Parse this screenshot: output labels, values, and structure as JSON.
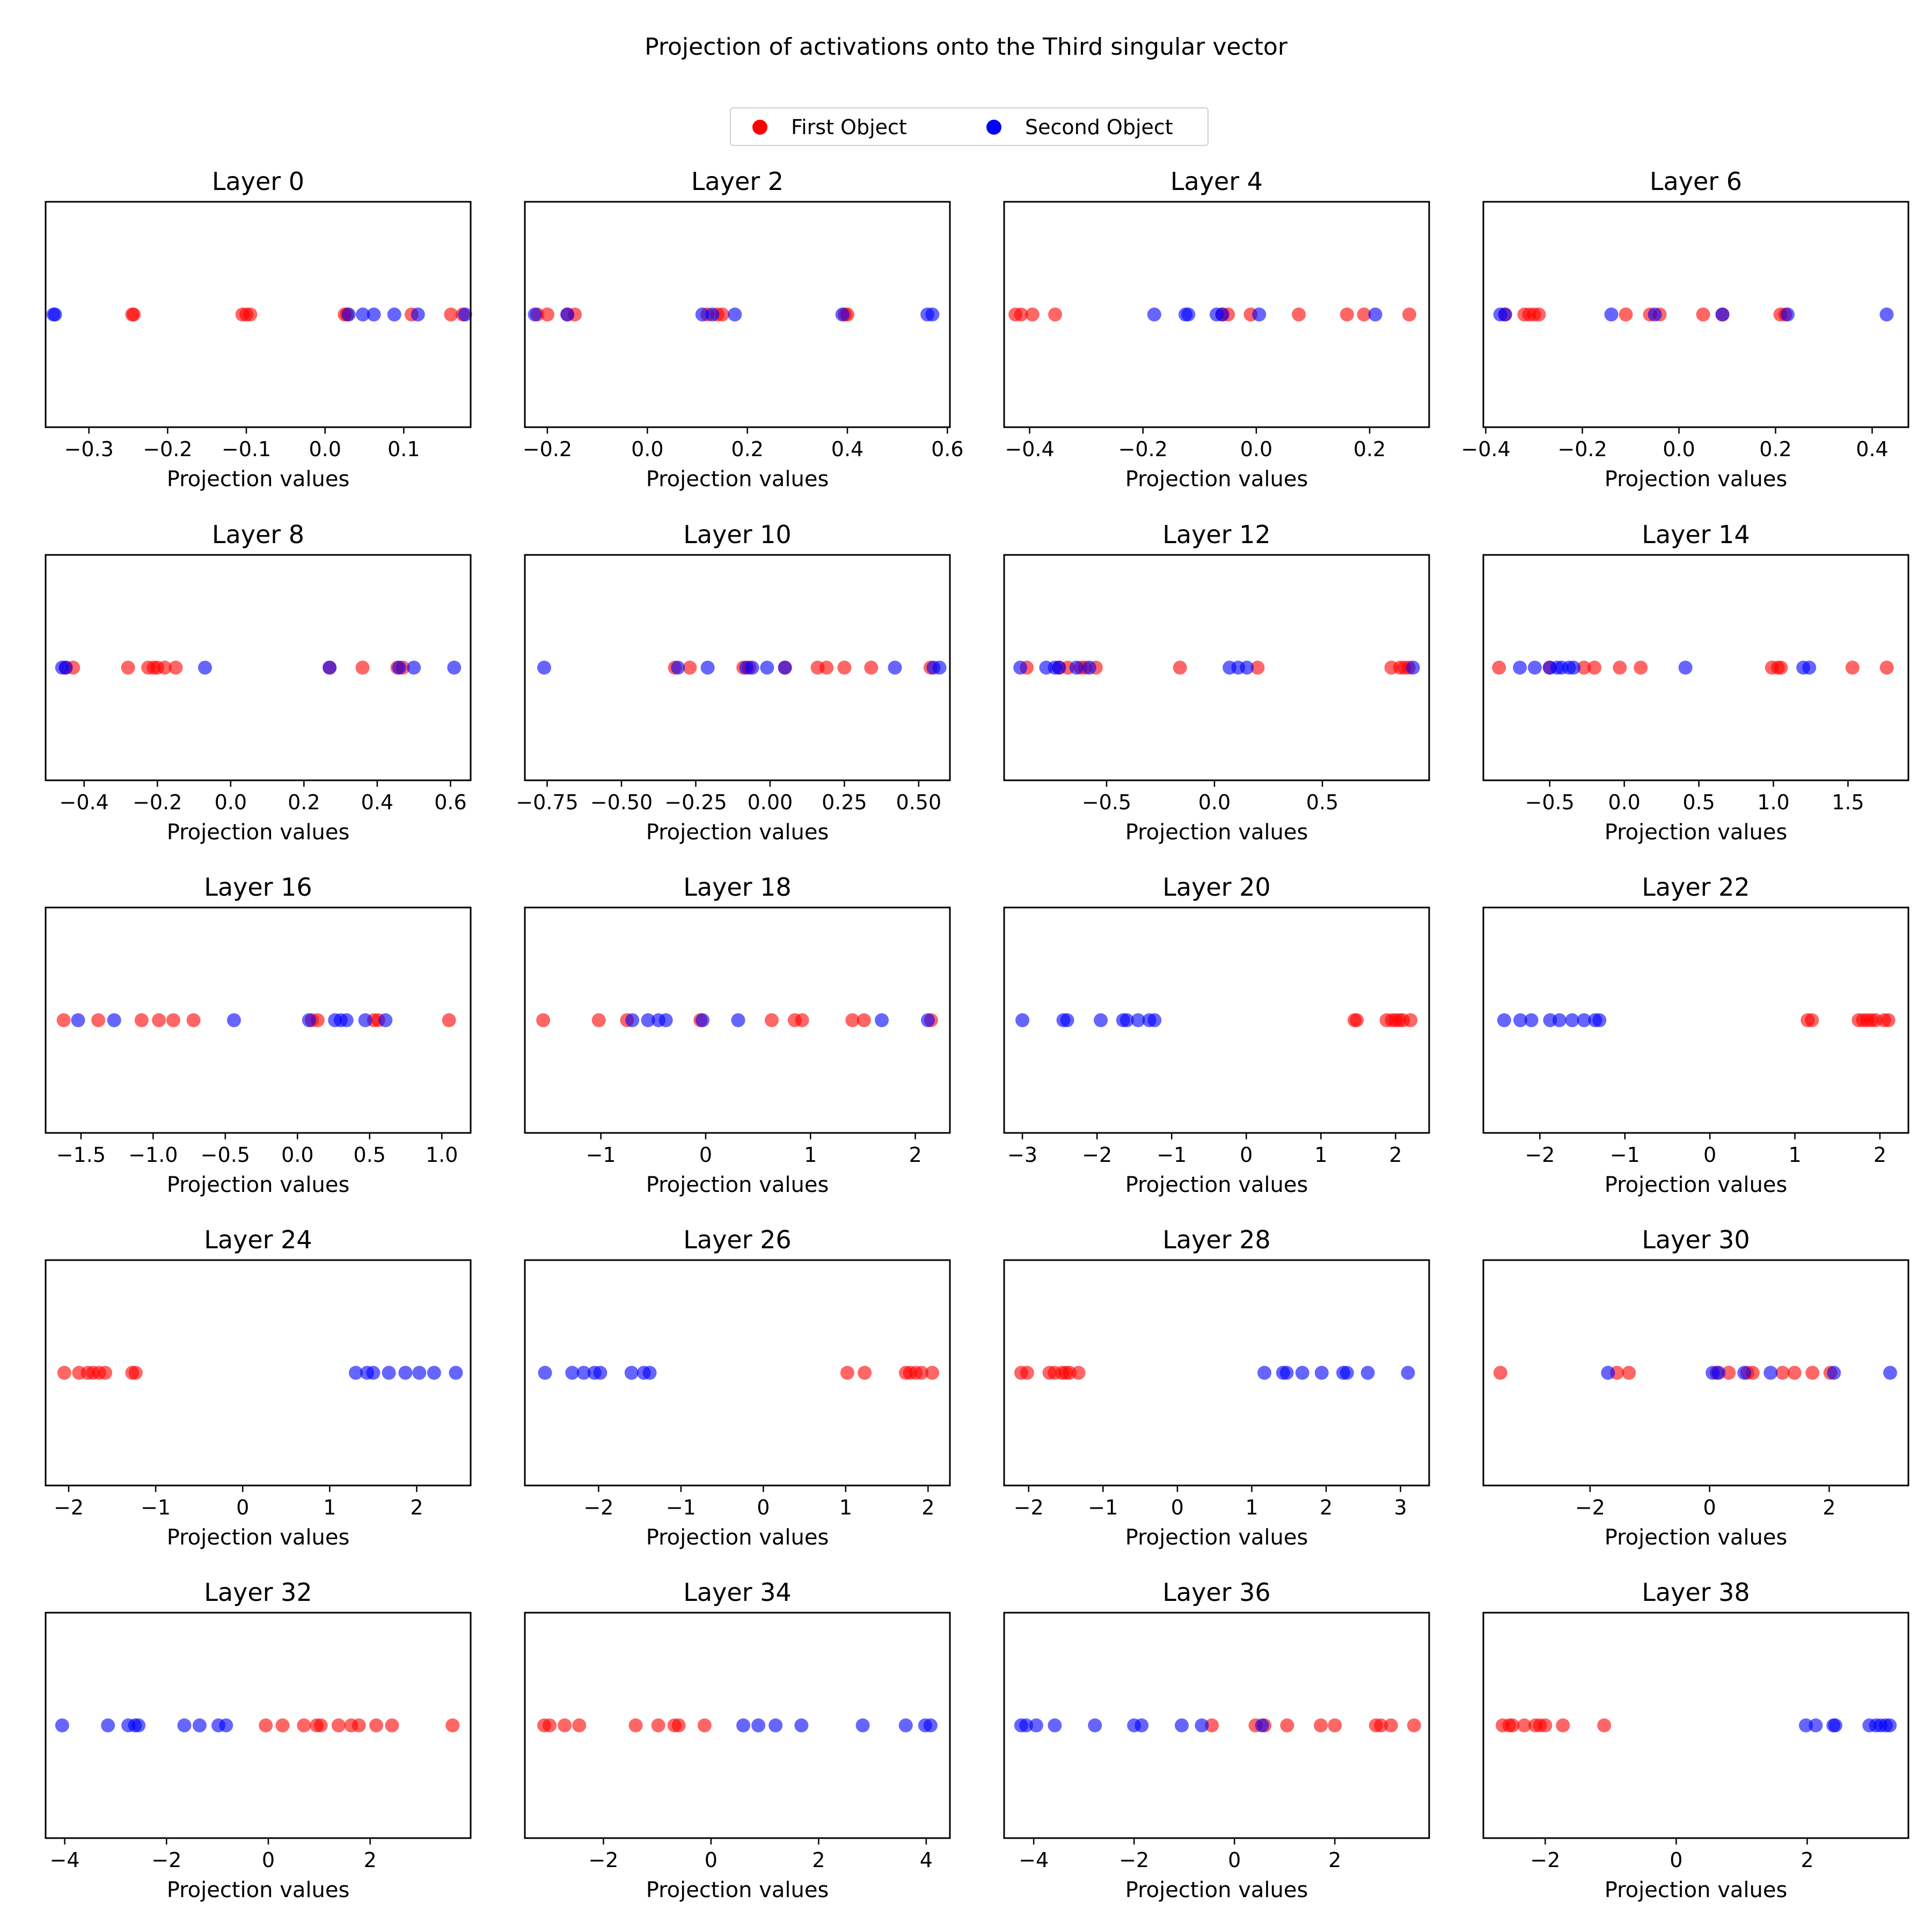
{
  "figure": {
    "title": "Projection of activations onto the Third singular vector",
    "legend": [
      {
        "label": "First Object",
        "color": "#ff0000"
      },
      {
        "label": "Second Object",
        "color": "#0000ff"
      }
    ]
  },
  "chart_data": [
    {
      "type": "scatter",
      "title": "Layer 0",
      "xlabel": "Projection values",
      "xlim": [
        -0.355,
        0.185
      ],
      "xticks": [
        -0.3,
        -0.2,
        -0.1,
        0.0,
        0.1
      ],
      "series": [
        {
          "name": "First Object",
          "color": "#ff0000",
          "x": [
            -0.245,
            -0.243,
            -0.105,
            -0.1,
            -0.095,
            0.025,
            0.028,
            0.11,
            0.16,
            0.175
          ]
        },
        {
          "name": "Second Object",
          "color": "#0000ff",
          "x": [
            -0.345,
            -0.343,
            0.03,
            0.048,
            0.062,
            0.088,
            0.118,
            0.178
          ]
        }
      ]
    },
    {
      "type": "scatter",
      "title": "Layer 2",
      "xlabel": "Projection values",
      "xlim": [
        -0.245,
        0.605
      ],
      "xticks": [
        -0.2,
        0.0,
        0.2,
        0.4,
        0.6
      ],
      "series": [
        {
          "name": "First Object",
          "color": "#ff0000",
          "x": [
            -0.22,
            -0.2,
            -0.16,
            -0.145,
            0.12,
            0.14,
            0.15,
            0.395,
            0.4
          ]
        },
        {
          "name": "Second Object",
          "color": "#0000ff",
          "x": [
            -0.225,
            -0.16,
            0.11,
            0.13,
            0.175,
            0.39,
            0.56,
            0.57
          ]
        }
      ]
    },
    {
      "type": "scatter",
      "title": "Layer 4",
      "xlabel": "Projection values",
      "xlim": [
        -0.445,
        0.305
      ],
      "xticks": [
        -0.4,
        -0.2,
        0.0,
        0.2
      ],
      "series": [
        {
          "name": "First Object",
          "color": "#ff0000",
          "x": [
            -0.425,
            -0.415,
            -0.395,
            -0.355,
            -0.06,
            -0.05,
            -0.01,
            0.075,
            0.16,
            0.19,
            0.27
          ]
        },
        {
          "name": "Second Object",
          "color": "#0000ff",
          "x": [
            -0.18,
            -0.125,
            -0.12,
            -0.07,
            -0.06,
            0.005,
            0.21
          ]
        }
      ]
    },
    {
      "type": "scatter",
      "title": "Layer 6",
      "xlabel": "Projection values",
      "xlim": [
        -0.405,
        0.475
      ],
      "xticks": [
        -0.4,
        -0.2,
        0.0,
        0.2,
        0.4
      ],
      "series": [
        {
          "name": "First Object",
          "color": "#ff0000",
          "x": [
            -0.36,
            -0.32,
            -0.31,
            -0.3,
            -0.29,
            -0.11,
            -0.06,
            -0.04,
            0.05,
            0.09,
            0.21,
            0.22
          ]
        },
        {
          "name": "Second Object",
          "color": "#0000ff",
          "x": [
            -0.37,
            -0.36,
            -0.14,
            -0.05,
            0.09,
            0.225,
            0.43
          ]
        }
      ]
    },
    {
      "type": "scatter",
      "title": "Layer 8",
      "xlabel": "Projection values",
      "xlim": [
        -0.505,
        0.655
      ],
      "xticks": [
        -0.4,
        -0.2,
        0.0,
        0.2,
        0.4,
        0.6
      ],
      "series": [
        {
          "name": "First Object",
          "color": "#ff0000",
          "x": [
            -0.45,
            -0.43,
            -0.28,
            -0.225,
            -0.21,
            -0.2,
            -0.18,
            -0.15,
            0.27,
            0.36,
            0.455,
            0.47
          ]
        },
        {
          "name": "Second Object",
          "color": "#0000ff",
          "x": [
            -0.46,
            -0.45,
            -0.07,
            0.27,
            0.46,
            0.5,
            0.61
          ]
        }
      ]
    },
    {
      "type": "scatter",
      "title": "Layer 10",
      "xlabel": "Projection values",
      "xlim": [
        -0.825,
        0.605
      ],
      "xticks": [
        -0.75,
        -0.5,
        -0.25,
        0.0,
        0.25,
        0.5
      ],
      "series": [
        {
          "name": "First Object",
          "color": "#ff0000",
          "x": [
            -0.32,
            -0.27,
            -0.09,
            -0.07,
            0.05,
            0.16,
            0.19,
            0.25,
            0.34,
            0.54
          ]
        },
        {
          "name": "Second Object",
          "color": "#0000ff",
          "x": [
            -0.76,
            -0.31,
            -0.21,
            -0.08,
            -0.06,
            -0.01,
            0.05,
            0.42,
            0.55,
            0.57
          ]
        }
      ]
    },
    {
      "type": "scatter",
      "title": "Layer 12",
      "xlabel": "Projection values",
      "xlim": [
        -0.975,
        0.995
      ],
      "xticks": [
        -0.5,
        0.0,
        0.5
      ],
      "series": [
        {
          "name": "First Object",
          "color": "#ff0000",
          "x": [
            -0.87,
            -0.72,
            -0.68,
            -0.62,
            -0.6,
            -0.55,
            -0.16,
            0.2,
            0.82,
            0.86,
            0.88,
            0.9
          ]
        },
        {
          "name": "Second Object",
          "color": "#0000ff",
          "x": [
            -0.9,
            -0.78,
            -0.74,
            -0.72,
            -0.64,
            -0.58,
            0.07,
            0.11,
            0.15,
            0.92
          ]
        }
      ]
    },
    {
      "type": "scatter",
      "title": "Layer 14",
      "xlabel": "Projection values",
      "xlim": [
        -0.945,
        1.905
      ],
      "xticks": [
        -0.5,
        0.0,
        0.5,
        1.0,
        1.5
      ],
      "series": [
        {
          "name": "First Object",
          "color": "#ff0000",
          "x": [
            -0.84,
            -0.5,
            -0.27,
            -0.2,
            -0.03,
            0.11,
            0.99,
            1.03,
            1.05,
            1.53,
            1.76
          ]
        },
        {
          "name": "Second Object",
          "color": "#0000ff",
          "x": [
            -0.7,
            -0.6,
            -0.5,
            -0.45,
            -0.42,
            -0.37,
            -0.34,
            0.41,
            1.2,
            1.24
          ]
        }
      ]
    },
    {
      "type": "scatter",
      "title": "Layer 16",
      "xlabel": "Projection values",
      "xlim": [
        -1.745,
        1.2
      ],
      "xticks": [
        -1.5,
        -1.0,
        -0.5,
        0.0,
        0.5,
        1.0
      ],
      "series": [
        {
          "name": "First Object",
          "color": "#ff0000",
          "x": [
            -1.62,
            -1.38,
            -1.08,
            -0.96,
            -0.86,
            -0.72,
            0.1,
            0.14,
            0.53,
            0.56,
            1.05
          ]
        },
        {
          "name": "Second Object",
          "color": "#0000ff",
          "x": [
            -1.52,
            -1.27,
            -0.44,
            0.08,
            0.26,
            0.3,
            0.34,
            0.47,
            0.61
          ]
        }
      ]
    },
    {
      "type": "scatter",
      "title": "Layer 18",
      "xlabel": "Projection values",
      "xlim": [
        -1.725,
        2.33
      ],
      "xticks": [
        -1,
        0,
        1,
        2
      ],
      "series": [
        {
          "name": "First Object",
          "color": "#ff0000",
          "x": [
            -1.55,
            -1.02,
            -0.75,
            -0.05,
            0.63,
            0.85,
            0.92,
            1.4,
            1.51,
            2.15
          ]
        },
        {
          "name": "Second Object",
          "color": "#0000ff",
          "x": [
            -0.7,
            -0.55,
            -0.45,
            -0.38,
            -0.03,
            0.31,
            1.68,
            2.12
          ]
        }
      ]
    },
    {
      "type": "scatter",
      "title": "Layer 20",
      "xlabel": "Projection values",
      "xlim": [
        -3.245,
        2.45
      ],
      "xticks": [
        -3,
        -2,
        -1,
        0,
        1,
        2
      ],
      "series": [
        {
          "name": "First Object",
          "color": "#ff0000",
          "x": [
            1.45,
            1.48,
            1.88,
            1.95,
            2.0,
            2.05,
            2.1,
            2.2
          ]
        },
        {
          "name": "Second Object",
          "color": "#0000ff",
          "x": [
            -3.0,
            -2.45,
            -2.4,
            -1.95,
            -1.65,
            -1.6,
            -1.45,
            -1.3,
            -1.23
          ]
        }
      ]
    },
    {
      "type": "scatter",
      "title": "Layer 22",
      "xlabel": "Projection values",
      "xlim": [
        -2.665,
        2.335
      ],
      "xticks": [
        -2,
        -1,
        0,
        1,
        2
      ],
      "series": [
        {
          "name": "First Object",
          "color": "#ff0000",
          "x": [
            1.15,
            1.2,
            1.75,
            1.8,
            1.85,
            1.9,
            1.95,
            2.05,
            2.1
          ]
        },
        {
          "name": "Second Object",
          "color": "#0000ff",
          "x": [
            -2.42,
            -2.23,
            -2.1,
            -1.88,
            -1.77,
            -1.62,
            -1.48,
            -1.35,
            -1.3
          ]
        }
      ]
    },
    {
      "type": "scatter",
      "title": "Layer 24",
      "xlabel": "Projection values",
      "xlim": [
        -2.265,
        2.62
      ],
      "xticks": [
        -2,
        -1,
        0,
        1,
        2
      ],
      "series": [
        {
          "name": "First Object",
          "color": "#ff0000",
          "x": [
            -2.05,
            -1.88,
            -1.78,
            -1.72,
            -1.65,
            -1.58,
            -1.27,
            -1.23
          ]
        },
        {
          "name": "Second Object",
          "color": "#0000ff",
          "x": [
            1.3,
            1.43,
            1.5,
            1.68,
            1.87,
            2.03,
            2.2,
            2.45
          ]
        }
      ]
    },
    {
      "type": "scatter",
      "title": "Layer 26",
      "xlabel": "Projection values",
      "xlim": [
        -2.895,
        2.265
      ],
      "xticks": [
        -2,
        -1,
        0,
        1,
        2
      ],
      "series": [
        {
          "name": "First Object",
          "color": "#ff0000",
          "x": [
            1.02,
            1.23,
            1.73,
            1.78,
            1.85,
            1.92,
            2.05
          ]
        },
        {
          "name": "Second Object",
          "color": "#0000ff",
          "x": [
            -2.65,
            -2.32,
            -2.18,
            -2.05,
            -1.98,
            -1.6,
            -1.45,
            -1.38
          ]
        }
      ]
    },
    {
      "type": "scatter",
      "title": "Layer 28",
      "xlabel": "Projection values",
      "xlim": [
        -2.33,
        3.385
      ],
      "xticks": [
        -2,
        -1,
        0,
        1,
        2,
        3
      ],
      "series": [
        {
          "name": "First Object",
          "color": "#ff0000",
          "x": [
            -2.1,
            -2.02,
            -1.72,
            -1.65,
            -1.55,
            -1.5,
            -1.45,
            -1.33
          ]
        },
        {
          "name": "Second Object",
          "color": "#0000ff",
          "x": [
            1.17,
            1.42,
            1.47,
            1.68,
            1.94,
            2.23,
            2.28,
            2.56,
            3.1
          ]
        }
      ]
    },
    {
      "type": "scatter",
      "title": "Layer 30",
      "xlabel": "Projection values",
      "xlim": [
        -3.785,
        3.325
      ],
      "xticks": [
        -2,
        0,
        2
      ],
      "series": [
        {
          "name": "First Object",
          "color": "#ff0000",
          "x": [
            -3.5,
            -1.55,
            -1.35,
            0.12,
            0.32,
            0.63,
            0.72,
            1.22,
            1.42,
            1.72,
            2.02
          ]
        },
        {
          "name": "Second Object",
          "color": "#0000ff",
          "x": [
            -1.7,
            0.05,
            0.15,
            0.58,
            1.02,
            2.08,
            3.02
          ]
        }
      ]
    },
    {
      "type": "scatter",
      "title": "Layer 32",
      "xlabel": "Projection values",
      "xlim": [
        -4.375,
        3.975
      ],
      "xticks": [
        -4,
        -2,
        0,
        2
      ],
      "series": [
        {
          "name": "First Object",
          "color": "#ff0000",
          "x": [
            -0.05,
            0.28,
            0.7,
            0.95,
            1.03,
            1.38,
            1.63,
            1.78,
            2.12,
            2.43,
            3.62
          ]
        },
        {
          "name": "Second Object",
          "color": "#0000ff",
          "x": [
            -4.05,
            -3.15,
            -2.75,
            -2.62,
            -2.55,
            -1.65,
            -1.35,
            -0.98,
            -0.83
          ]
        }
      ]
    },
    {
      "type": "scatter",
      "title": "Layer 34",
      "xlabel": "Projection values",
      "xlim": [
        -3.46,
        4.44
      ],
      "xticks": [
        -2,
        0,
        2,
        4
      ],
      "series": [
        {
          "name": "First Object",
          "color": "#ff0000",
          "x": [
            -3.1,
            -3.0,
            -2.72,
            -2.45,
            -1.4,
            -0.98,
            -0.68,
            -0.6,
            -0.12
          ]
        },
        {
          "name": "Second Object",
          "color": "#0000ff",
          "x": [
            0.6,
            0.88,
            1.2,
            1.68,
            2.82,
            3.62,
            3.98,
            4.08
          ]
        }
      ]
    },
    {
      "type": "scatter",
      "title": "Layer 36",
      "xlabel": "Projection values",
      "xlim": [
        -4.59,
        3.88
      ],
      "xticks": [
        -4,
        -2,
        0,
        2
      ],
      "series": [
        {
          "name": "First Object",
          "color": "#ff0000",
          "x": [
            -0.45,
            0.42,
            0.6,
            1.05,
            1.72,
            2.0,
            2.82,
            2.92,
            3.12,
            3.58
          ]
        },
        {
          "name": "Second Object",
          "color": "#0000ff",
          "x": [
            -4.25,
            -4.15,
            -3.95,
            -3.58,
            -2.78,
            -2.0,
            -1.85,
            -1.05,
            -0.65,
            0.55
          ]
        }
      ]
    },
    {
      "type": "scatter",
      "title": "Layer 38",
      "xlabel": "Projection values",
      "xlim": [
        -2.945,
        3.545
      ],
      "xticks": [
        -2,
        0,
        2
      ],
      "series": [
        {
          "name": "First Object",
          "color": "#ff0000",
          "x": [
            -2.65,
            -2.55,
            -2.5,
            -2.32,
            -2.15,
            -2.08,
            -2.0,
            -1.73,
            -1.1
          ]
        },
        {
          "name": "Second Object",
          "color": "#0000ff",
          "x": [
            1.98,
            2.13,
            2.4,
            2.43,
            2.95,
            3.05,
            3.12,
            3.2,
            3.26
          ]
        }
      ]
    }
  ]
}
